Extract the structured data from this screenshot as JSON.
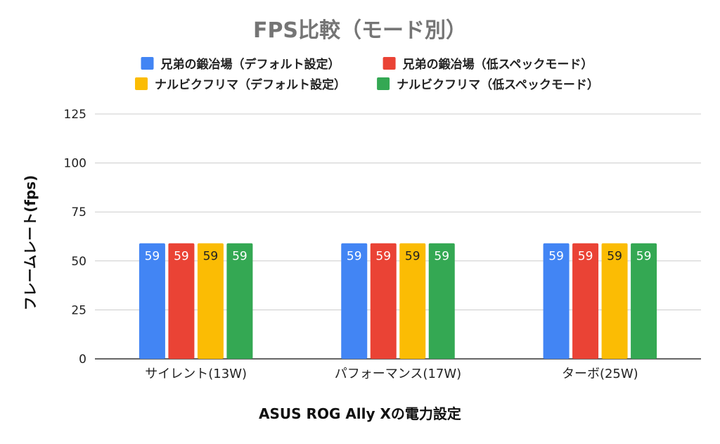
{
  "chart_data": {
    "type": "bar",
    "title": "FPS比較（モード別）",
    "xlabel": "ASUS ROG Ally Xの電力設定",
    "ylabel": "フレームレート(fps)",
    "categories": [
      "サイレント(13W)",
      "パフォーマンス(17W)",
      "ターボ(25W)"
    ],
    "ylim": [
      0,
      125
    ],
    "yticks": [
      "0",
      "25",
      "50",
      "75",
      "100",
      "125"
    ],
    "grid": true,
    "legend_position": "top",
    "series": [
      {
        "name": "兄弟の鍛冶場（デフォルト設定）",
        "color": "#4285F4",
        "label_color": "#ffffff",
        "values": [
          59,
          59,
          59
        ]
      },
      {
        "name": "兄弟の鍛冶場（低スペックモード）",
        "color": "#EA4335",
        "label_color": "#ffffff",
        "values": [
          59,
          59,
          59
        ]
      },
      {
        "name": "ナルビクフリマ（デフォルト設定）",
        "color": "#FBBC04",
        "label_color": "#222222",
        "values": [
          59,
          59,
          59
        ]
      },
      {
        "name": "ナルビクフリマ（低スペックモード）",
        "color": "#34A853",
        "label_color": "#ffffff",
        "values": [
          59,
          59,
          59
        ]
      }
    ]
  }
}
